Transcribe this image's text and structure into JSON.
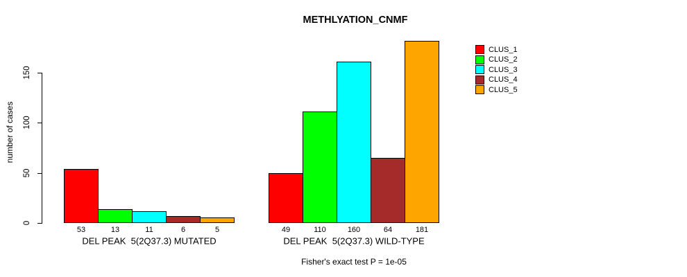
{
  "chart_data": {
    "type": "bar",
    "title": "METHLYATION_CNMF",
    "ylabel": "number of cases",
    "xlabel": "",
    "ylim": [
      0,
      181
    ],
    "yticks": [
      0,
      50,
      100,
      150
    ],
    "grid": false,
    "legend_position": "right",
    "legend": [
      "CLUS_1",
      "CLUS_2",
      "CLUS_3",
      "CLUS_4",
      "CLUS_5"
    ],
    "series_colors": [
      "#FF0000",
      "#00FF00",
      "#00FFFF",
      "#A52A2A",
      "#FFA500"
    ],
    "bar_border_color": "#000000",
    "groups": [
      {
        "label": "DEL PEAK  5(2Q37.3) MUTATED",
        "values": [
          53,
          13,
          11,
          6,
          5
        ]
      },
      {
        "label": "DEL PEAK  5(2Q37.3) WILD-TYPE",
        "values": [
          49,
          110,
          160,
          64,
          181
        ]
      }
    ],
    "annotation": "Fisher's exact test P = 1e-05"
  }
}
